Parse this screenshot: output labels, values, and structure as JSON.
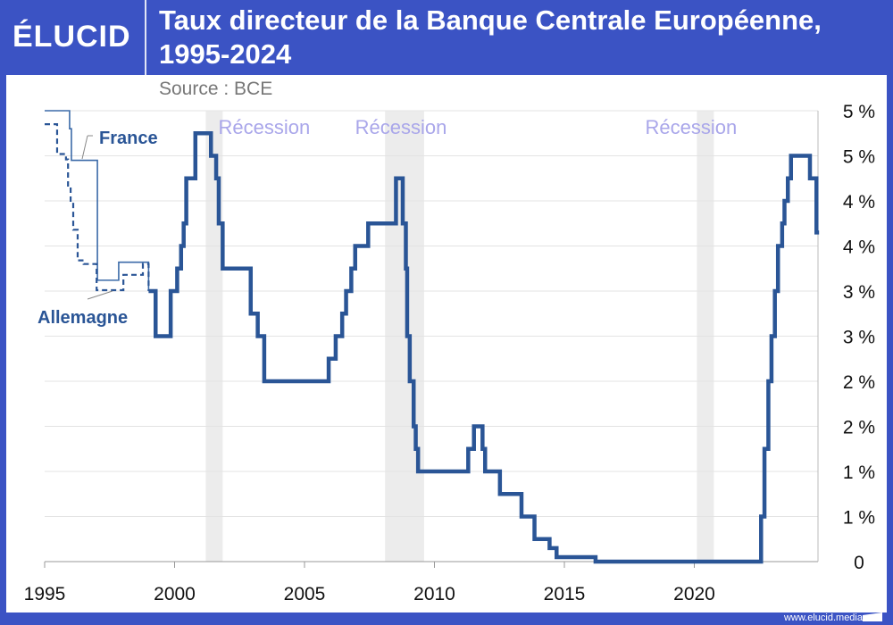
{
  "header": {
    "logo": "ÉLUCID",
    "title": "Taux directeur de la Banque Centrale Européenne, 1995-2024",
    "source": "Source : BCE"
  },
  "footer": {
    "url": "www.elucid.media"
  },
  "colors": {
    "brand": "#3b53c4",
    "line": "#2a5596",
    "recession": "#ececec",
    "recession_label": "#a9a6ea"
  },
  "chart_data": {
    "type": "line",
    "title": "Taux directeur de la Banque Centrale Européenne, 1995-2024",
    "xlabel": "",
    "ylabel": "",
    "xlim": [
      1995,
      2024.8
    ],
    "ylim": [
      0,
      5
    ],
    "x_ticks": [
      1995,
      2000,
      2005,
      2010,
      2015,
      2020
    ],
    "y_ticks": [
      {
        "v": 0,
        "label": "0"
      },
      {
        "v": 0.5,
        "label": "1 %"
      },
      {
        "v": 1,
        "label": "1 %"
      },
      {
        "v": 1.5,
        "label": "2 %"
      },
      {
        "v": 2,
        "label": "2 %"
      },
      {
        "v": 2.5,
        "label": "3 %"
      },
      {
        "v": 3,
        "label": "3 %"
      },
      {
        "v": 3.5,
        "label": "4 %"
      },
      {
        "v": 4,
        "label": "4 %"
      },
      {
        "v": 4.5,
        "label": "5 %"
      },
      {
        "v": 5,
        "label": "5 %"
      }
    ],
    "grid": true,
    "recessions": [
      {
        "label": "Récession",
        "from": 2001.2,
        "to": 2001.85
      },
      {
        "label": "Récession",
        "from": 2008.1,
        "to": 2009.6
      },
      {
        "label": "Récession",
        "from": 2020.1,
        "to": 2020.75
      }
    ],
    "series": [
      {
        "name": "BCE",
        "style": "thick",
        "points": [
          [
            1999.0,
            3.0
          ],
          [
            1999.27,
            2.5
          ],
          [
            1999.85,
            3.0
          ],
          [
            2000.1,
            3.25
          ],
          [
            2000.25,
            3.5
          ],
          [
            2000.35,
            3.75
          ],
          [
            2000.45,
            4.25
          ],
          [
            2000.8,
            4.75
          ],
          [
            2001.4,
            4.5
          ],
          [
            2001.6,
            4.25
          ],
          [
            2001.7,
            3.75
          ],
          [
            2001.85,
            3.25
          ],
          [
            2002.93,
            2.75
          ],
          [
            2003.2,
            2.5
          ],
          [
            2003.45,
            2.0
          ],
          [
            2005.93,
            2.25
          ],
          [
            2006.2,
            2.5
          ],
          [
            2006.45,
            2.75
          ],
          [
            2006.6,
            3.0
          ],
          [
            2006.8,
            3.25
          ],
          [
            2006.95,
            3.5
          ],
          [
            2007.45,
            3.75
          ],
          [
            2008.52,
            4.25
          ],
          [
            2008.78,
            3.75
          ],
          [
            2008.9,
            3.25
          ],
          [
            2008.95,
            2.5
          ],
          [
            2009.05,
            2.0
          ],
          [
            2009.2,
            1.5
          ],
          [
            2009.28,
            1.25
          ],
          [
            2009.37,
            1.0
          ],
          [
            2011.3,
            1.25
          ],
          [
            2011.52,
            1.5
          ],
          [
            2011.85,
            1.25
          ],
          [
            2011.95,
            1.0
          ],
          [
            2012.52,
            0.75
          ],
          [
            2013.35,
            0.5
          ],
          [
            2013.85,
            0.25
          ],
          [
            2014.43,
            0.15
          ],
          [
            2014.7,
            0.05
          ],
          [
            2016.2,
            0.0
          ],
          [
            2022.57,
            0.5
          ],
          [
            2022.7,
            1.25
          ],
          [
            2022.85,
            2.0
          ],
          [
            2022.97,
            2.5
          ],
          [
            2023.1,
            3.0
          ],
          [
            2023.22,
            3.5
          ],
          [
            2023.38,
            3.75
          ],
          [
            2023.47,
            4.0
          ],
          [
            2023.6,
            4.25
          ],
          [
            2023.72,
            4.5
          ],
          [
            2024.45,
            4.25
          ],
          [
            2024.7,
            3.65
          ],
          [
            2024.8,
            3.65
          ]
        ]
      },
      {
        "name": "France",
        "style": "thin",
        "label": "France",
        "points": [
          [
            1995.0,
            5.0
          ],
          [
            1995.96,
            4.8
          ],
          [
            1996.03,
            4.45
          ],
          [
            1997.03,
            3.12
          ],
          [
            1997.85,
            3.32
          ],
          [
            1999.0,
            3.0
          ]
        ]
      },
      {
        "name": "Allemagne",
        "style": "dashed",
        "label": "Allemagne",
        "points": [
          [
            1995.0,
            4.85
          ],
          [
            1995.48,
            4.52
          ],
          [
            1995.82,
            4.46
          ],
          [
            1995.9,
            4.15
          ],
          [
            1996.0,
            3.98
          ],
          [
            1996.1,
            3.68
          ],
          [
            1996.27,
            3.34
          ],
          [
            1996.5,
            3.3
          ],
          [
            1997.0,
            3.01
          ],
          [
            1998.03,
            3.18
          ],
          [
            1998.78,
            3.3
          ],
          [
            1999.0,
            3.0
          ]
        ]
      }
    ]
  }
}
